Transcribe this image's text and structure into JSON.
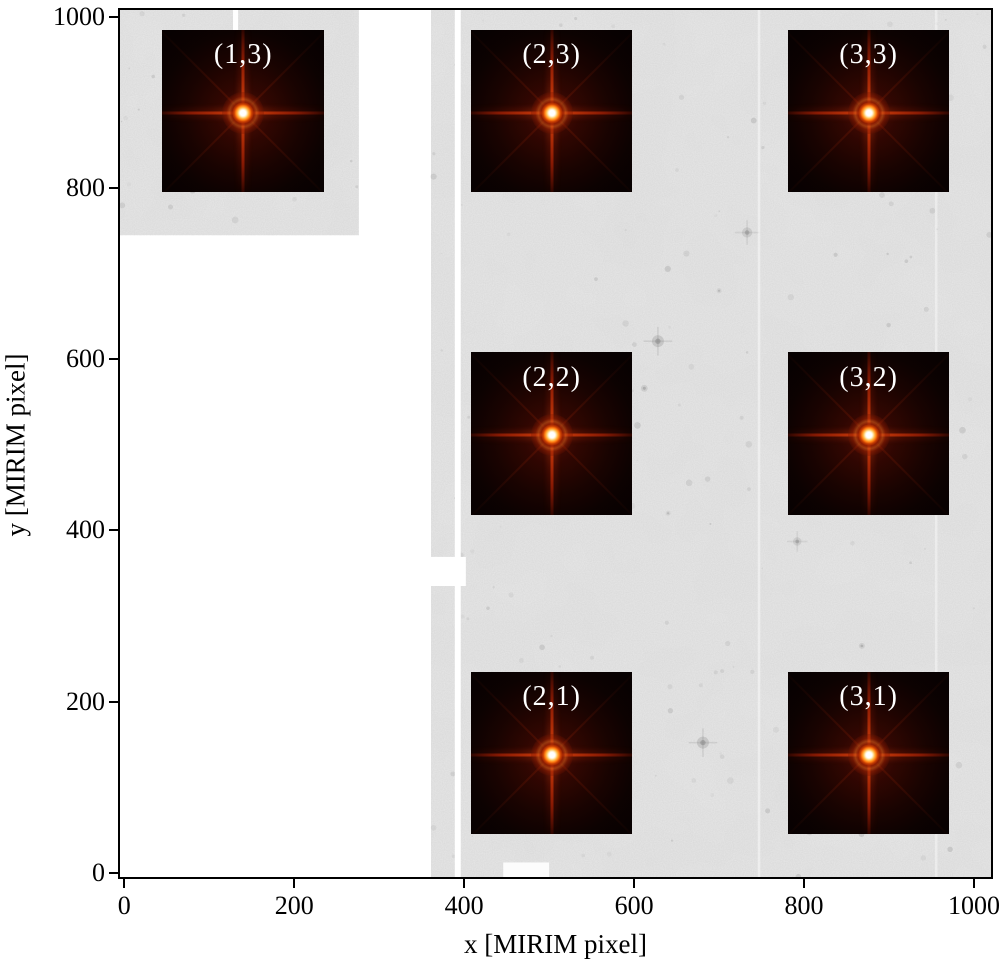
{
  "chart_data": {
    "type": "heatmap",
    "title": "",
    "xlabel": "x [MIRIM pixel]",
    "ylabel": "y [MIRIM pixel]",
    "xlim": [
      -5,
      1020
    ],
    "ylim": [
      -5,
      1008
    ],
    "xticks": [
      0,
      200,
      400,
      600,
      800,
      1000
    ],
    "yticks": [
      0,
      200,
      400,
      600,
      800,
      1000
    ],
    "grid": false,
    "legend_position": "none",
    "colors": {
      "detector_background": "#e9e9e9",
      "empty_background": "#ffffff",
      "axis": "#000000",
      "psf_cutout_background": "#070101",
      "psf_core_hot": "#ffffff",
      "psf_core_warm": "#ff7d12",
      "psf_spike_red": "#a82602",
      "cutout_label_text": "#ffffff"
    },
    "detector_regions": [
      {
        "name": "main-detector-area",
        "x": [
          361,
          1020
        ],
        "y": [
          -5,
          1008
        ]
      },
      {
        "name": "upper-left-detector-patch",
        "x": [
          -5,
          276
        ],
        "y": [
          745,
          1008
        ]
      }
    ],
    "detector_gaps": [
      {
        "name": "column-gap",
        "x": [
          389,
          396
        ],
        "y": [
          -5,
          1008
        ],
        "opacity": 1
      },
      {
        "name": "left-edge-notch",
        "x": [
          361,
          402
        ],
        "y": [
          335,
          369
        ],
        "opacity": 1
      },
      {
        "name": "patch-slash",
        "x": [
          128,
          134
        ],
        "y": [
          860,
          1008
        ],
        "opacity": 0.95
      },
      {
        "name": "faint-column-1",
        "x": [
          745.5,
          748.5
        ],
        "y": [
          -5,
          1008
        ],
        "opacity": 0.45
      },
      {
        "name": "faint-column-2",
        "x": [
          954,
          957
        ],
        "y": [
          -5,
          1008
        ],
        "opacity": 0.4
      },
      {
        "name": "bottom-edge-blemish",
        "x": [
          446,
          500
        ],
        "y": [
          -5,
          12
        ],
        "opacity": 0.9
      }
    ],
    "psf_cutouts": [
      {
        "label": "(1,3)",
        "x": 140,
        "y": 890,
        "half_size": 95
      },
      {
        "label": "(2,3)",
        "x": 503,
        "y": 890,
        "half_size": 95
      },
      {
        "label": "(3,3)",
        "x": 876,
        "y": 890,
        "half_size": 95
      },
      {
        "label": "(2,2)",
        "x": 503,
        "y": 513,
        "half_size": 95
      },
      {
        "label": "(3,2)",
        "x": 876,
        "y": 513,
        "half_size": 95
      },
      {
        "label": "(2,1)",
        "x": 503,
        "y": 140,
        "half_size": 95
      },
      {
        "label": "(3,1)",
        "x": 876,
        "y": 140,
        "half_size": 95
      }
    ],
    "background_sources": [
      {
        "x": 628,
        "y": 621,
        "r": 7,
        "opacity": 0.3,
        "spikes": true
      },
      {
        "x": 612,
        "y": 566,
        "r": 4,
        "opacity": 0.22,
        "spikes": false
      },
      {
        "x": 733,
        "y": 748,
        "r": 6,
        "opacity": 0.25,
        "spikes": true
      },
      {
        "x": 681,
        "y": 152,
        "r": 7,
        "opacity": 0.3,
        "spikes": true
      },
      {
        "x": 792,
        "y": 387,
        "r": 5,
        "opacity": 0.22,
        "spikes": true
      },
      {
        "x": 868,
        "y": 265,
        "r": 3.5,
        "opacity": 0.2,
        "spikes": false
      },
      {
        "x": 951,
        "y": 913,
        "r": 3,
        "opacity": 0.25,
        "spikes": false
      },
      {
        "x": 422,
        "y": 497,
        "r": 4,
        "opacity": 0.15,
        "spikes": false
      },
      {
        "x": 700,
        "y": 680,
        "r": 3,
        "opacity": 0.15,
        "spikes": false
      },
      {
        "x": 640,
        "y": 420,
        "r": 3,
        "opacity": 0.14,
        "spikes": false
      }
    ]
  }
}
